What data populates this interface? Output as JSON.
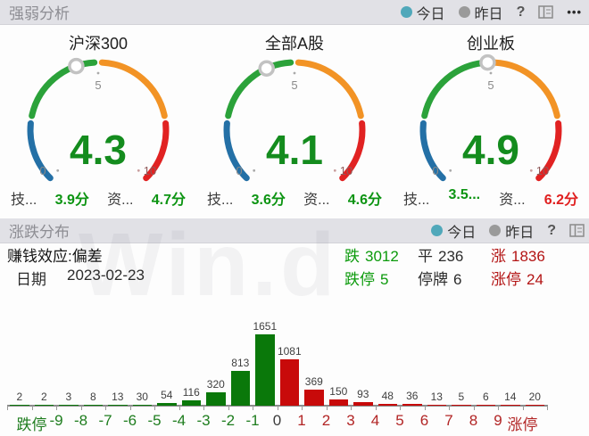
{
  "section1": {
    "title": "强弱分析",
    "legend": {
      "today": "今日",
      "yesterday": "昨日",
      "help": "?",
      "more": "•••",
      "today_color": "#50a8ba",
      "yesterday_color": "#9a9a9a"
    },
    "scale": {
      "min": "0",
      "mid": "5",
      "max": "10"
    },
    "value_color": "#148c1e",
    "gauge_segments": [
      {
        "from": 0,
        "to": 1.88,
        "color": "#2470a6"
      },
      {
        "from": 2.12,
        "to": 4.88,
        "color": "#2ba23a"
      },
      {
        "from": 5.12,
        "to": 7.88,
        "color": "#f29325"
      },
      {
        "from": 8.12,
        "to": 10,
        "color": "#e12222"
      }
    ],
    "gauges": [
      {
        "name": "沪深300",
        "value": "4.3",
        "tech_label": "技...",
        "tech_value": "3.9分",
        "tech_value_color": "#0c9412",
        "cap_label": "资...",
        "cap_value": "4.7分",
        "cap_value_color": "#0c9412"
      },
      {
        "name": "全部A股",
        "value": "4.1",
        "tech_label": "技...",
        "tech_value": "3.6分",
        "tech_value_color": "#0c9412",
        "cap_label": "资...",
        "cap_value": "4.6分",
        "cap_value_color": "#0c9412"
      },
      {
        "name": "创业板",
        "value": "4.9",
        "tech_label": "技...",
        "tech_value": "3.5...",
        "tech_value_color": "#0c9412",
        "cap_label": "资...",
        "cap_value": "6.2分",
        "cap_value_color": "#e02020"
      }
    ]
  },
  "section2": {
    "title": "涨跌分布",
    "legend": {
      "today": "今日",
      "yesterday": "昨日",
      "help": "?"
    },
    "effect": {
      "label": "赚钱效应:",
      "value": "偏差"
    },
    "date": {
      "label": "日期",
      "value": "2023-02-23"
    },
    "stats": {
      "down": {
        "label": "跌",
        "value": "3012",
        "color": "#0b9a0b"
      },
      "flat": {
        "label": "平",
        "value": "236",
        "color": "#2b2b2b"
      },
      "up": {
        "label": "涨",
        "value": "1836",
        "color": "#b31414"
      },
      "limit_down": {
        "label": "跌停",
        "value": "5",
        "color": "#0b9a0b"
      },
      "suspended": {
        "label": "停牌",
        "value": "6",
        "color": "#2b2b2b"
      },
      "limit_up": {
        "label": "涨停",
        "value": "24",
        "color": "#b31414"
      }
    }
  },
  "watermark": "Win.d",
  "chart_data": {
    "type": "bar",
    "title": "涨跌分布",
    "boundary_labels": [
      "跌停",
      "-9",
      "-8",
      "-7",
      "-6",
      "-5",
      "-4",
      "-3",
      "-2",
      "-1",
      "0",
      "1",
      "2",
      "3",
      "4",
      "5",
      "6",
      "7",
      "8",
      "9",
      "涨停"
    ],
    "values": [
      2,
      2,
      3,
      8,
      13,
      30,
      54,
      116,
      320,
      813,
      1651,
      1081,
      369,
      150,
      93,
      48,
      36,
      13,
      5,
      6,
      14,
      20
    ],
    "down_buckets": 11,
    "down_color": "#0a780a",
    "up_color": "#c80a0a",
    "ylim": [
      0,
      1651
    ],
    "note": "22 buckets between boundary labels; left 11 green (decline), right 11 red (advance)"
  }
}
